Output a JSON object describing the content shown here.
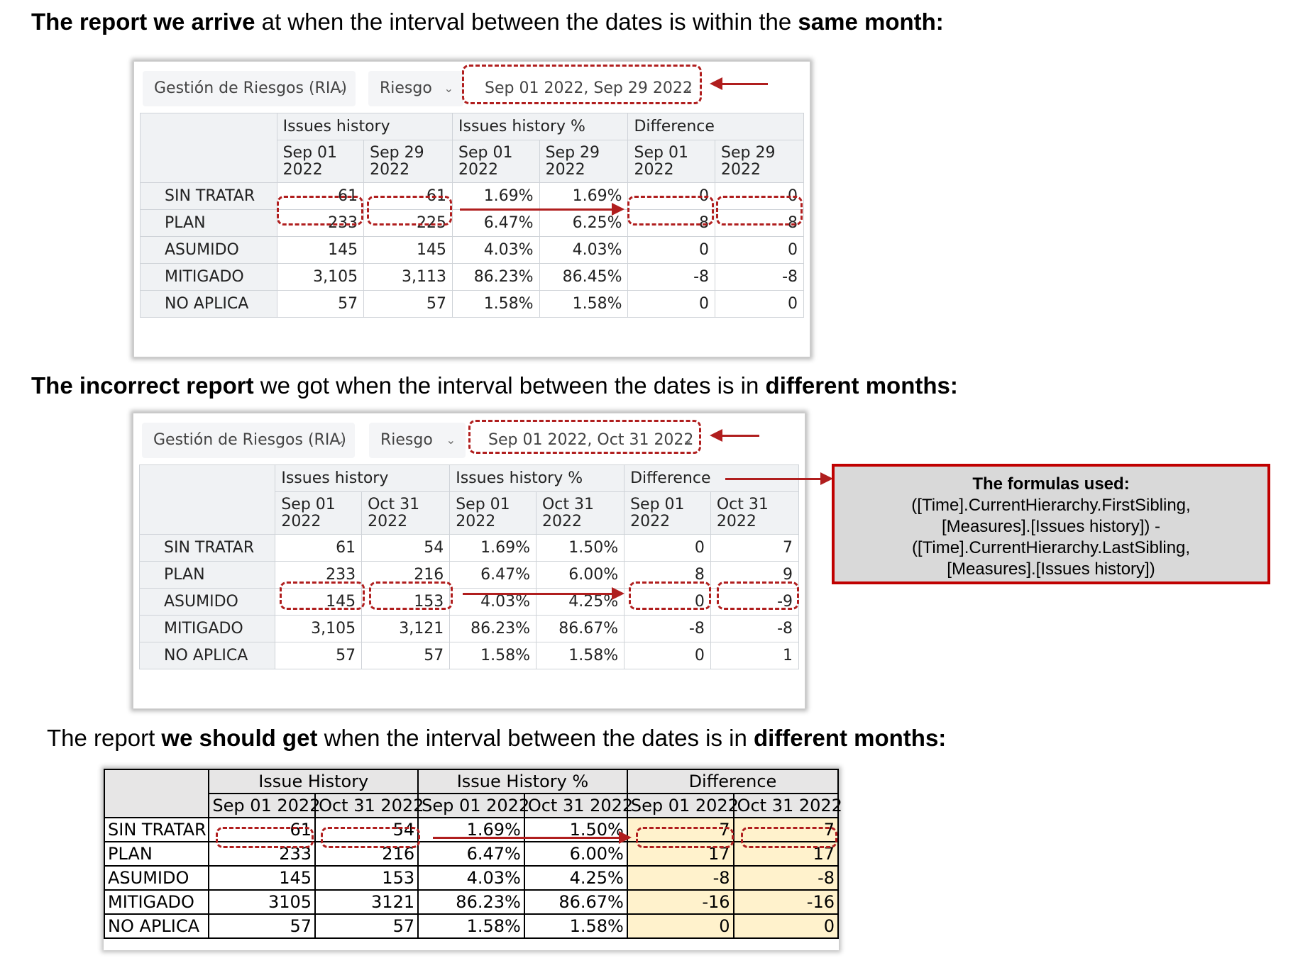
{
  "headings": {
    "h1": [
      {
        "t": "The report we arrive",
        "b": true
      },
      {
        "t": " at when the interval between the dates is within the ",
        "b": false
      },
      {
        "t": "same month:",
        "b": true
      }
    ],
    "h2": [
      {
        "t": "The incorrect report",
        "b": true
      },
      {
        "t": " we got when the interval between the dates is in ",
        "b": false
      },
      {
        "t": "different months:",
        "b": true
      }
    ],
    "h3": [
      {
        "t": "The report ",
        "b": false
      },
      {
        "t": "we should get",
        "b": true
      },
      {
        "t": " when the interval between the dates is in ",
        "b": false
      },
      {
        "t": "different months:",
        "b": true
      }
    ]
  },
  "report1": {
    "filters": [
      "Gestión de Riesgos (RIA)",
      "Riesgo",
      "Sep 01 2022, Sep 29 2022"
    ],
    "groups": [
      "Issues history",
      "Issues history %",
      "Difference"
    ],
    "dates": [
      [
        "Sep 01",
        "2022"
      ],
      [
        "Sep 29",
        "2022"
      ],
      [
        "Sep 01",
        "2022"
      ],
      [
        "Sep 29",
        "2022"
      ],
      [
        "Sep 01",
        "2022"
      ],
      [
        "Sep 29",
        "2022"
      ]
    ],
    "rows": [
      {
        "label": "SIN TRATAR",
        "values": [
          "61",
          "61",
          "1.69%",
          "1.69%",
          "0",
          "0"
        ]
      },
      {
        "label": "PLAN",
        "values": [
          "233",
          "225",
          "6.47%",
          "6.25%",
          "8",
          "8"
        ]
      },
      {
        "label": "ASUMIDO",
        "values": [
          "145",
          "145",
          "4.03%",
          "4.03%",
          "0",
          "0"
        ]
      },
      {
        "label": "MITIGADO",
        "values": [
          "3,105",
          "3,113",
          "86.23%",
          "86.45%",
          "-8",
          "-8"
        ]
      },
      {
        "label": "NO APLICA",
        "values": [
          "57",
          "57",
          "1.58%",
          "1.58%",
          "0",
          "0"
        ]
      }
    ]
  },
  "report2": {
    "filters": [
      "Gestión de Riesgos (RIA)",
      "Riesgo",
      "Sep 01 2022, Oct 31 2022"
    ],
    "groups": [
      "Issues history",
      "Issues history %",
      "Difference"
    ],
    "dates": [
      [
        "Sep 01",
        "2022"
      ],
      [
        "Oct 31",
        "2022"
      ],
      [
        "Sep 01",
        "2022"
      ],
      [
        "Oct 31",
        "2022"
      ],
      [
        "Sep 01",
        "2022"
      ],
      [
        "Oct 31",
        "2022"
      ]
    ],
    "rows": [
      {
        "label": "SIN TRATAR",
        "values": [
          "61",
          "54",
          "1.69%",
          "1.50%",
          "0",
          "7"
        ]
      },
      {
        "label": "PLAN",
        "values": [
          "233",
          "216",
          "6.47%",
          "6.00%",
          "8",
          "9"
        ]
      },
      {
        "label": "ASUMIDO",
        "values": [
          "145",
          "153",
          "4.03%",
          "4.25%",
          "0",
          "-9"
        ]
      },
      {
        "label": "MITIGADO",
        "values": [
          "3,105",
          "3,121",
          "86.23%",
          "86.67%",
          "-8",
          "-8"
        ]
      },
      {
        "label": "NO APLICA",
        "values": [
          "57",
          "57",
          "1.58%",
          "1.58%",
          "0",
          "1"
        ]
      }
    ]
  },
  "formula": {
    "title": "The formulas used:",
    "lines": [
      "([Time].CurrentHierarchy.FirstSibling,",
      "[Measures].[Issues history]) -",
      "([Time].CurrentHierarchy.LastSibling,",
      "[Measures].[Issues history])"
    ]
  },
  "report3": {
    "groups": [
      "Issue History",
      "Issue History %",
      "Difference"
    ],
    "dates": [
      "Sep 01 2022",
      "Oct 31 2022",
      "Sep 01 2022",
      "Oct 31 2022",
      "Sep 01 2022",
      "Oct 31 2022"
    ],
    "rows": [
      {
        "label": "SIN TRATAR",
        "values": [
          "61",
          "54",
          "1.69%",
          "1.50%",
          "7",
          "7"
        ]
      },
      {
        "label": "PLAN",
        "values": [
          "233",
          "216",
          "6.47%",
          "6.00%",
          "17",
          "17"
        ]
      },
      {
        "label": "ASUMIDO",
        "values": [
          "145",
          "153",
          "4.03%",
          "4.25%",
          "-8",
          "-8"
        ]
      },
      {
        "label": "MITIGADO",
        "values": [
          "3105",
          "3121",
          "86.23%",
          "86.67%",
          "-16",
          "-16"
        ]
      },
      {
        "label": "NO APLICA",
        "values": [
          "57",
          "57",
          "1.58%",
          "1.58%",
          "0",
          "0"
        ]
      }
    ]
  },
  "colors": {
    "annotation_red": "#b01e1e",
    "difference_fill": "#fff2cc",
    "formula_box_bg": "#d9d9d9"
  },
  "icons": {
    "dropdown": "chevron-down-icon",
    "annotation": "arrow-icon"
  }
}
